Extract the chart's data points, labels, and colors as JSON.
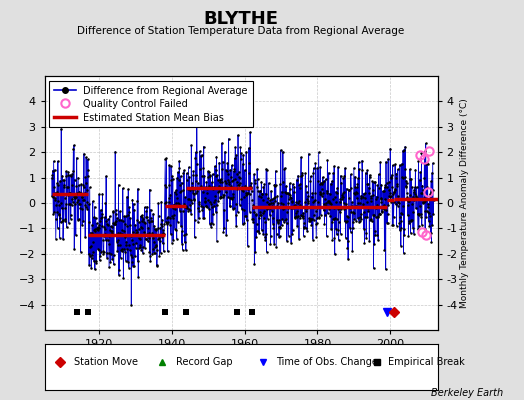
{
  "title": "BLYTHE",
  "subtitle": "Difference of Station Temperature Data from Regional Average",
  "ylabel_right": "Monthly Temperature Anomaly Difference (°C)",
  "credit": "Berkeley Earth",
  "xlim": [
    1905,
    2013
  ],
  "ylim": [
    -5,
    5
  ],
  "yticks": [
    -4,
    -3,
    -2,
    -1,
    0,
    1,
    2,
    3,
    4
  ],
  "xticks": [
    1920,
    1940,
    1960,
    1980,
    2000
  ],
  "x_start": 1907,
  "x_end": 2012,
  "seed": 42,
  "bias_segments": [
    {
      "x_start": 1907,
      "x_end": 1914,
      "bias": 0.35
    },
    {
      "x_start": 1914,
      "x_end": 1917,
      "bias": 0.35
    },
    {
      "x_start": 1917,
      "x_end": 1938,
      "bias": -1.25
    },
    {
      "x_start": 1938,
      "x_end": 1944,
      "bias": -0.1
    },
    {
      "x_start": 1944,
      "x_end": 1958,
      "bias": 0.6
    },
    {
      "x_start": 1958,
      "x_end": 1962,
      "bias": 0.6
    },
    {
      "x_start": 1962,
      "x_end": 1999,
      "bias": -0.15
    },
    {
      "x_start": 1999,
      "x_end": 2001,
      "bias": 0.1
    },
    {
      "x_start": 2001,
      "x_end": 2013,
      "bias": 0.15
    }
  ],
  "empirical_breaks": [
    1914,
    1917,
    1938,
    1944,
    1958,
    1962
  ],
  "time_of_obs_changes": [
    1999
  ],
  "station_moves": [
    2001
  ],
  "qc_failed_x": [
    2008.25,
    2008.75,
    2009.25,
    2009.75,
    2010.25,
    2010.75
  ],
  "qc_failed_y": [
    1.9,
    -1.15,
    1.75,
    -1.25,
    0.45,
    2.05
  ],
  "line_color": "#0000cc",
  "bias_color": "#cc0000",
  "qc_color": "#ff66cc",
  "marker_color": "#000000",
  "bg_color": "#e0e0e0",
  "plot_bg_color": "#ffffff",
  "grid_color": "#bbbbbb"
}
